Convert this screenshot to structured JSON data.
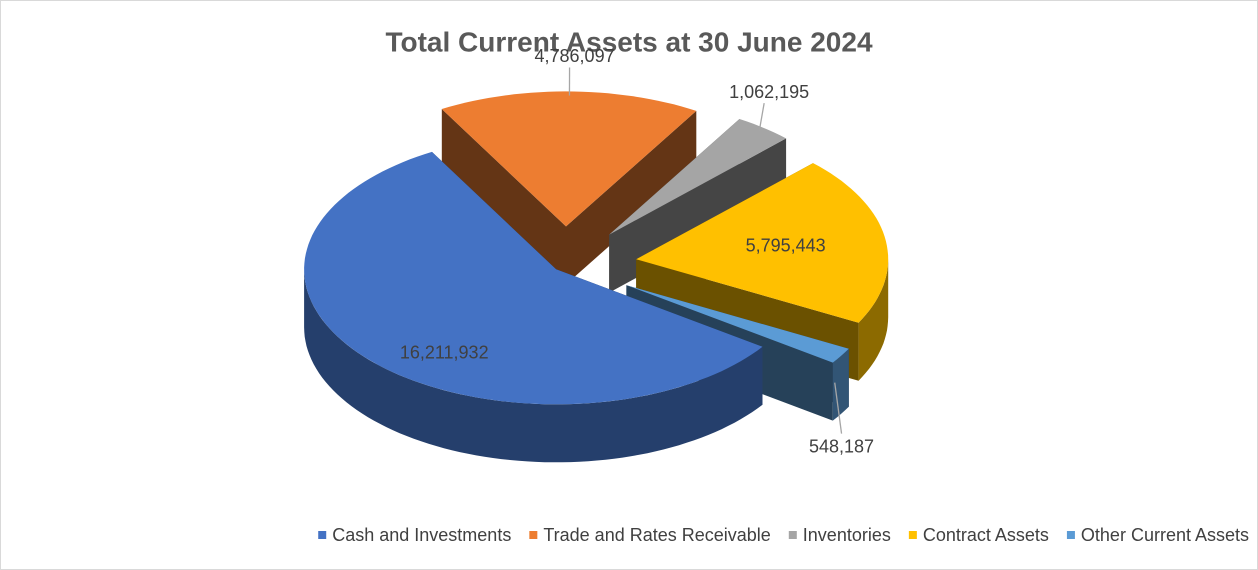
{
  "chart_data": {
    "type": "pie",
    "title": "Total Current Assets at 30 June 2024",
    "categories": [
      "Cash and Investments",
      "Trade and Rates Receivable",
      "Inventories",
      "Contract Assets",
      "Other Current Assets"
    ],
    "values": [
      16211932,
      4786097,
      1062195,
      5795443,
      548187
    ],
    "value_labels": [
      "16,211,932",
      "4,786,097",
      "1,062,195",
      "5,795,443",
      "548,187"
    ],
    "colors": [
      "#4472c4",
      "#ed7d31",
      "#a5a5a5",
      "#ffc000",
      "#5b9bd5"
    ],
    "legend": "bottom"
  }
}
